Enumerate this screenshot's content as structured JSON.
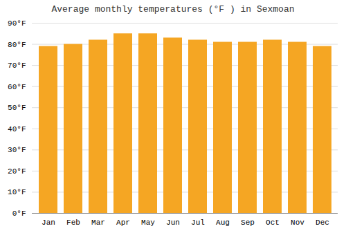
{
  "chart_data": {
    "type": "bar",
    "title": "Average monthly temperatures (°F ) in Sexmoan",
    "categories": [
      "Jan",
      "Feb",
      "Mar",
      "Apr",
      "May",
      "Jun",
      "Jul",
      "Aug",
      "Sep",
      "Oct",
      "Nov",
      "Dec"
    ],
    "values": [
      79,
      80,
      82,
      85,
      85,
      83,
      82,
      81,
      81,
      82,
      81,
      79
    ],
    "color": "#F5A623",
    "ylim": [
      0,
      90
    ],
    "yticks": [
      {
        "value": 0,
        "label": "0°F"
      },
      {
        "value": 10,
        "label": "10°F"
      },
      {
        "value": 20,
        "label": "20°F"
      },
      {
        "value": 30,
        "label": "30°F"
      },
      {
        "value": 40,
        "label": "40°F"
      },
      {
        "value": 50,
        "label": "50°F"
      },
      {
        "value": 60,
        "label": "60°F"
      },
      {
        "value": 70,
        "label": "70°F"
      },
      {
        "value": 80,
        "label": "80°F"
      },
      {
        "value": 90,
        "label": "90°F"
      }
    ],
    "grid": true
  }
}
